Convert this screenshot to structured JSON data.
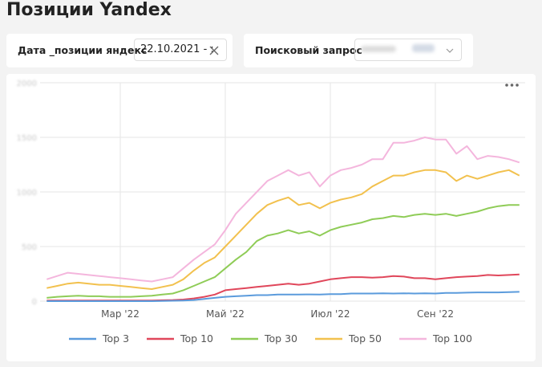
{
  "header": {
    "title": "Позиции Yandex"
  },
  "filters": [
    {
      "label": "Дата _позиции яндекс",
      "value": "22.10.2021 - :"
    },
    {
      "label": "Поисковый запрос"
    }
  ],
  "chart_data": {
    "type": "line",
    "categories": [
      null,
      null,
      null,
      null,
      null,
      null,
      null,
      "Мар '22",
      null,
      null,
      null,
      null,
      null,
      null,
      null,
      null,
      null,
      "Май '22",
      null,
      null,
      null,
      null,
      null,
      null,
      null,
      null,
      null,
      "Июл '22",
      null,
      null,
      null,
      null,
      null,
      null,
      null,
      null,
      null,
      "Сен '22",
      null,
      null,
      null,
      null,
      null,
      null,
      null,
      null
    ],
    "ylim": [
      0,
      2000
    ],
    "yticks": [
      0,
      500,
      1000,
      1500,
      2000
    ],
    "grid": true,
    "series": [
      {
        "name": "Top 3",
        "color": "#5b9bdc",
        "values": [
          0,
          0,
          0,
          0,
          0,
          0,
          0,
          0,
          0,
          0,
          0,
          2,
          4,
          6,
          10,
          20,
          30,
          40,
          45,
          50,
          55,
          55,
          60,
          60,
          60,
          62,
          60,
          65,
          65,
          70,
          70,
          70,
          72,
          70,
          72,
          70,
          72,
          70,
          75,
          75,
          78,
          80,
          80,
          80,
          82,
          85
        ]
      },
      {
        "name": "Top 10",
        "color": "#e0475b",
        "values": [
          5,
          5,
          5,
          5,
          5,
          5,
          5,
          5,
          5,
          5,
          5,
          8,
          10,
          15,
          25,
          40,
          60,
          100,
          110,
          120,
          130,
          140,
          150,
          160,
          150,
          160,
          180,
          200,
          210,
          220,
          220,
          215,
          220,
          230,
          225,
          210,
          210,
          200,
          210,
          220,
          225,
          230,
          240,
          235,
          240,
          245
        ]
      },
      {
        "name": "Top 30",
        "color": "#8fcc57",
        "values": [
          30,
          40,
          45,
          50,
          45,
          45,
          40,
          40,
          40,
          45,
          50,
          60,
          70,
          100,
          140,
          180,
          220,
          300,
          380,
          450,
          550,
          600,
          620,
          650,
          620,
          640,
          600,
          650,
          680,
          700,
          720,
          750,
          760,
          780,
          770,
          790,
          800,
          790,
          800,
          780,
          800,
          820,
          850,
          870,
          880,
          880
        ]
      },
      {
        "name": "Top 50",
        "color": "#f2c14e",
        "values": [
          120,
          140,
          160,
          170,
          160,
          150,
          150,
          140,
          130,
          120,
          110,
          130,
          150,
          200,
          280,
          350,
          400,
          500,
          600,
          700,
          800,
          880,
          920,
          950,
          880,
          900,
          850,
          900,
          930,
          950,
          980,
          1050,
          1100,
          1150,
          1150,
          1180,
          1200,
          1200,
          1180,
          1100,
          1150,
          1120,
          1150,
          1180,
          1200,
          1150
        ]
      },
      {
        "name": "Top 100",
        "color": "#f4b6dd",
        "values": [
          200,
          230,
          260,
          250,
          240,
          230,
          220,
          210,
          200,
          190,
          180,
          200,
          220,
          300,
          380,
          450,
          520,
          650,
          800,
          900,
          1000,
          1100,
          1150,
          1200,
          1150,
          1180,
          1050,
          1150,
          1200,
          1220,
          1250,
          1300,
          1300,
          1450,
          1450,
          1470,
          1500,
          1480,
          1480,
          1350,
          1420,
          1300,
          1330,
          1320,
          1300,
          1270
        ]
      }
    ]
  }
}
